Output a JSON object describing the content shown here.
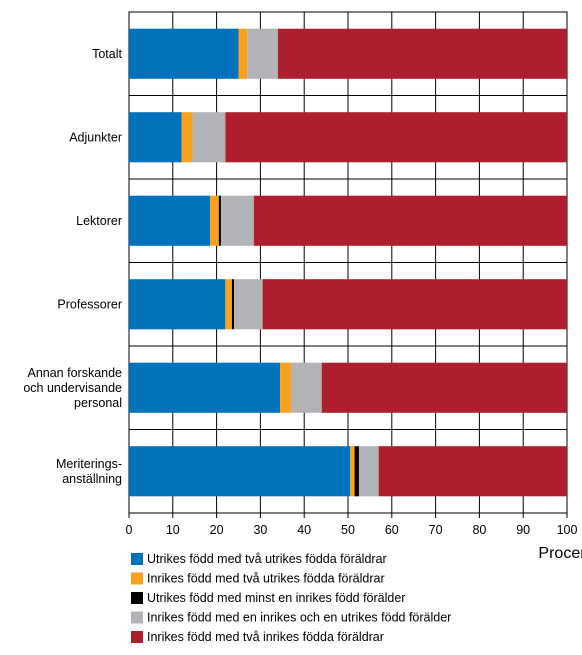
{
  "chart_data": {
    "type": "bar",
    "orientation": "horizontal",
    "stacked": true,
    "categories": [
      [
        "Totalt"
      ],
      [
        "Adjunkter"
      ],
      [
        "Lektorer"
      ],
      [
        "Professorer"
      ],
      [
        "Annan forskande",
        "och undervisande",
        "personal"
      ],
      [
        "Meriterings-",
        "anställning"
      ]
    ],
    "series": [
      {
        "name": "Utrikes född med två utrikes födda föräldrar",
        "color": "#0072bc",
        "values": [
          25,
          12,
          18.5,
          22,
          34.5,
          50.5
        ]
      },
      {
        "name": "Inrikes född med två utrikes födda föräldrar",
        "color": "#f9a11b",
        "values": [
          2,
          2.5,
          2,
          1.5,
          2.5,
          1
        ]
      },
      {
        "name": "Utrikes född med minst en inrikes född förälder",
        "color": "#000000",
        "values": [
          0,
          0,
          0.5,
          0.5,
          0,
          1
        ]
      },
      {
        "name": "Inrikes född med en inrikes och en utrikes född förälder",
        "color": "#b1b3b6",
        "values": [
          7,
          7.5,
          7.5,
          6.5,
          7,
          4.5
        ]
      },
      {
        "name": "Inrikes född med två inrikes födda föräldrar",
        "color": "#ad1f2c",
        "values": [
          66,
          78,
          71.5,
          69.5,
          56,
          43
        ]
      }
    ],
    "x_ticks": [
      0,
      10,
      20,
      30,
      40,
      50,
      60,
      70,
      80,
      90,
      100
    ],
    "xlim": [
      0,
      100
    ],
    "xlabel": "Procent",
    "grid": true,
    "legend_position": "bottom-left"
  }
}
